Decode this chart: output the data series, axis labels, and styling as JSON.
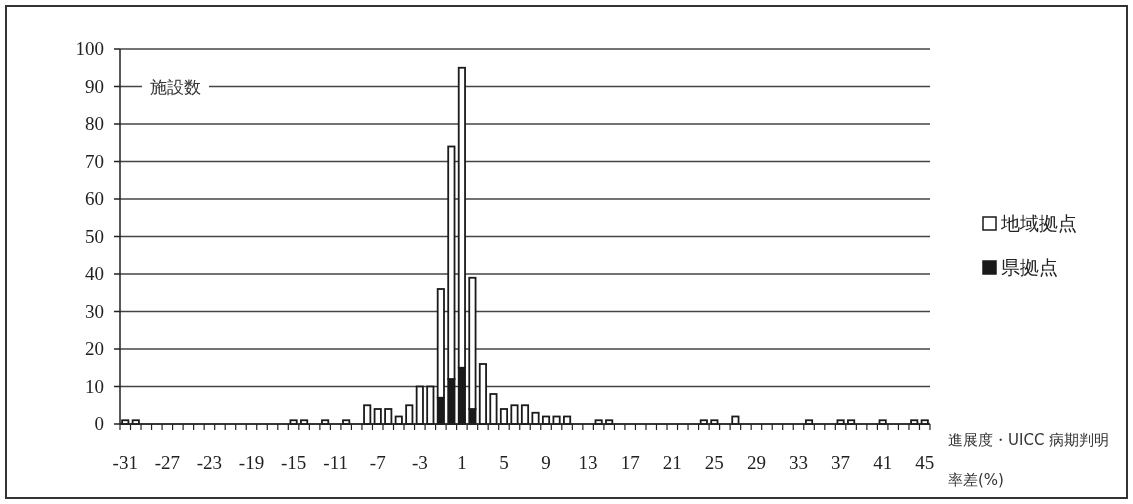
{
  "chart_data": {
    "type": "bar",
    "stacked": true,
    "ylabel": "施設数",
    "xlabel": "進展度・UICC 病期判明率差(%)",
    "categories": [
      "-31",
      null,
      null,
      null,
      "-27",
      null,
      null,
      null,
      "-23",
      null,
      null,
      null,
      "-19",
      null,
      null,
      null,
      "-15",
      null,
      null,
      null,
      "-11",
      null,
      null,
      null,
      "-7",
      null,
      null,
      null,
      "-3",
      null,
      null,
      null,
      "1",
      null,
      null,
      null,
      "5",
      null,
      null,
      null,
      "9",
      null,
      null,
      null,
      "13",
      null,
      null,
      null,
      "17",
      null,
      null,
      null,
      "21",
      null,
      null,
      null,
      "25",
      null,
      null,
      null,
      "29",
      null,
      null,
      null,
      "33",
      null,
      null,
      null,
      "37",
      null,
      null,
      null,
      "41",
      null,
      null,
      null,
      "45"
    ],
    "series": [
      {
        "name": "県拠点",
        "color": "#1a1a1a",
        "values": [
          0,
          0,
          0,
          0,
          0,
          0,
          0,
          0,
          0,
          0,
          0,
          0,
          0,
          0,
          0,
          0,
          0,
          0,
          0,
          0,
          0,
          0,
          0,
          0,
          0,
          0,
          0,
          0,
          0,
          0,
          7,
          12,
          15,
          4,
          0,
          0,
          0,
          0,
          0,
          0,
          0,
          0,
          0,
          0,
          0,
          0,
          0,
          0,
          0,
          0,
          0,
          0,
          0,
          0,
          0,
          0,
          0,
          0,
          0,
          0,
          0,
          0,
          0,
          0,
          0,
          0,
          0,
          0,
          0,
          0,
          0,
          0,
          0,
          0,
          0,
          0,
          0
        ]
      },
      {
        "name": "地域拠点",
        "color": "#ffffff",
        "values": [
          1,
          1,
          0,
          0,
          0,
          0,
          0,
          0,
          0,
          0,
          0,
          0,
          0,
          0,
          0,
          0,
          1,
          1,
          0,
          1,
          0,
          1,
          0,
          5,
          4,
          4,
          2,
          5,
          10,
          10,
          29,
          62,
          80,
          35,
          16,
          8,
          4,
          5,
          5,
          3,
          2,
          2,
          2,
          0,
          0,
          1,
          1,
          0,
          0,
          0,
          0,
          0,
          0,
          0,
          0,
          1,
          1,
          0,
          2,
          0,
          0,
          0,
          0,
          0,
          0,
          1,
          0,
          0,
          1,
          1,
          0,
          0,
          1,
          0,
          0,
          1,
          1
        ]
      }
    ],
    "ylim": [
      0,
      100
    ],
    "yticks": [
      0,
      10,
      20,
      30,
      40,
      50,
      60,
      70,
      80,
      90,
      100
    ],
    "grid": "y",
    "legend": "right"
  }
}
